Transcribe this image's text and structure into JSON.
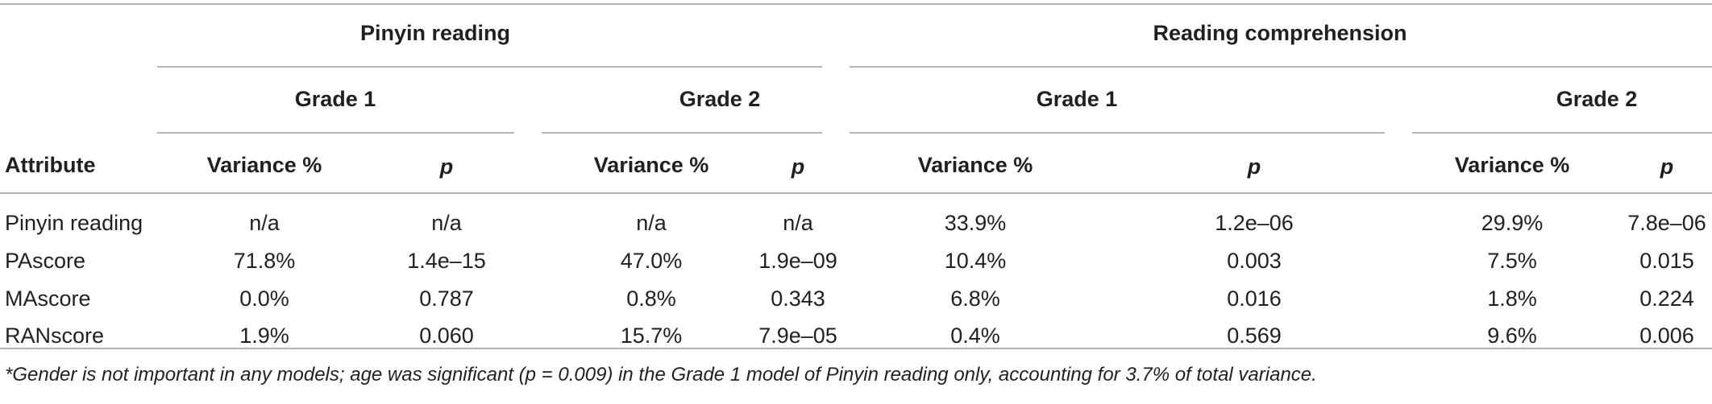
{
  "table": {
    "groups": [
      {
        "label": "Pinyin reading",
        "grades": [
          "Grade 1",
          "Grade 2"
        ]
      },
      {
        "label": "Reading comprehension",
        "grades": [
          "Grade 1",
          "Grade 2"
        ]
      }
    ],
    "columns": {
      "attribute": "Attribute",
      "variance": "Variance %",
      "p": "p"
    },
    "rows": [
      {
        "attribute": "Pinyin reading",
        "values": [
          "n/a",
          "n/a",
          "n/a",
          "n/a",
          "33.9%",
          "1.2e–06",
          "29.9%",
          "7.8e–06"
        ]
      },
      {
        "attribute": "PAscore",
        "values": [
          "71.8%",
          "1.4e–15",
          "47.0%",
          "1.9e–09",
          "10.4%",
          "0.003",
          "7.5%",
          "0.015"
        ]
      },
      {
        "attribute": "MAscore",
        "values": [
          "0.0%",
          "0.787",
          "0.8%",
          "0.343",
          "6.8%",
          "0.016",
          "1.8%",
          "0.224"
        ]
      },
      {
        "attribute": "RANscore",
        "values": [
          "1.9%",
          "0.060",
          "15.7%",
          "7.9e–05",
          "0.4%",
          "0.569",
          "9.6%",
          "0.006"
        ]
      }
    ],
    "footnote": "*Gender is not important in any models; age was significant (p = 0.009) in the Grade 1 model of Pinyin reading only, accounting for 3.7% of total variance."
  }
}
